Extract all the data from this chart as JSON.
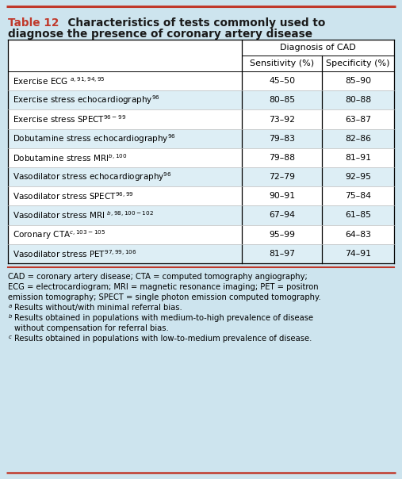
{
  "background_color": "#cde4ee",
  "table_bg_white": "#ffffff",
  "table_bg_light": "#ddeef5",
  "title_red": "#c0392b",
  "border_red": "#c0392b",
  "rows": [
    [
      "Exercise ECG $^{a, 91, 94, 95}$",
      "45–50",
      "85–90"
    ],
    [
      "Exercise stress echocardiography$^{96}$",
      "80–85",
      "80–88"
    ],
    [
      "Exercise stress SPECT$^{96-99}$",
      "73–92",
      "63–87"
    ],
    [
      "Dobutamine stress echocardiography$^{96}$",
      "79–83",
      "82–86"
    ],
    [
      "Dobutamine stress MRI$^{b,100}$",
      "79–88",
      "81–91"
    ],
    [
      "Vasodilator stress echocardiography$^{96}$",
      "72–79",
      "92–95"
    ],
    [
      "Vasodilator stress SPECT$^{96, 99}$",
      "90–91",
      "75–84"
    ],
    [
      "Vasodilator stress MRI $^{b,98, 100-102}$",
      "67–94",
      "61–85"
    ],
    [
      "Coronary CTA$^{c,103-105}$",
      "95–99",
      "64–83"
    ],
    [
      "Vasodilator stress PET$^{97, 99, 106}$",
      "81–97",
      "74–91"
    ]
  ],
  "footnote_main": "CAD = coronary artery disease; CTA = computed tomography angiography;\nECG = electrocardiogram; MRI = magnetic resonance imaging; PET = positron\nemission tomography; SPECT = single photon emission computed tomography.",
  "footnote_a": "Results without/with minimal referral bias.",
  "footnote_b": "Results obtained in populations with medium-to-high prevalence of disease\nwithout compensation for referral bias.",
  "footnote_c": "Results obtained in populations with low-to-medium prevalence of disease."
}
